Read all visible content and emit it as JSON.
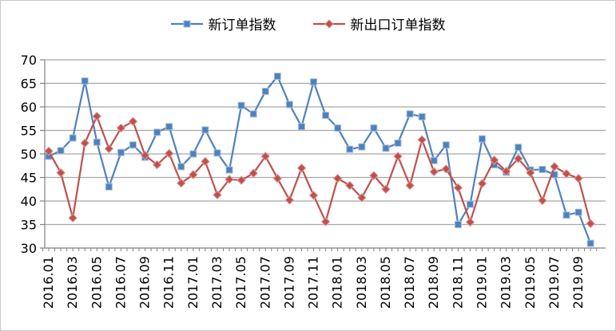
{
  "chart": {
    "title": "",
    "legend_position": "top"
  },
  "chart_data": {
    "type": "line",
    "title": "",
    "xlabel": "",
    "ylabel": "",
    "ylim": [
      30,
      70
    ],
    "y_step": 5,
    "y_ticks": [
      30,
      35,
      40,
      45,
      50,
      55,
      60,
      65,
      70
    ],
    "grid": true,
    "legend_position": "top",
    "x_label_interval": 2,
    "x": [
      "2016.01",
      "2016.02",
      "2016.03",
      "2016.04",
      "2016.05",
      "2016.06",
      "2016.07",
      "2016.08",
      "2016.09",
      "2016.10",
      "2016.11",
      "2016.12",
      "2017.01",
      "2017.02",
      "2017.03",
      "2017.04",
      "2017.05",
      "2017.06",
      "2017.07",
      "2017.08",
      "2017.09",
      "2017.10",
      "2017.11",
      "2017.12",
      "2018.01",
      "2018.02",
      "2018.03",
      "2018.04",
      "2018.05",
      "2018.06",
      "2018.07",
      "2018.08",
      "2018.09",
      "2018.10",
      "2018.11",
      "2018.12",
      "2019.01",
      "2019.02",
      "2019.03",
      "2019.04",
      "2019.05",
      "2019.06",
      "2019.07",
      "2019.08",
      "2019.09",
      "2019.10"
    ],
    "series": [
      {
        "name": "新订单指数",
        "color": "#4f81bd",
        "edge_color": "#a9c2e0",
        "marker": "square",
        "values": [
          49.5,
          50.7,
          53.4,
          65.5,
          52.5,
          43.0,
          50.3,
          51.9,
          49.3,
          54.6,
          55.8,
          47.3,
          50.0,
          55.1,
          50.2,
          46.6,
          60.3,
          58.5,
          63.3,
          66.5,
          60.5,
          55.8,
          65.3,
          58.2,
          55.5,
          51.0,
          51.5,
          55.5,
          51.2,
          52.3,
          58.5,
          57.9,
          48.6,
          51.9,
          35.0,
          39.3,
          53.2,
          47.7,
          46.1,
          51.4,
          46.6,
          46.7,
          45.6,
          37.0,
          37.6,
          31.0
        ]
      },
      {
        "name": "新出口订单指数",
        "color": "#c0504d",
        "edge_color": "#dca09e",
        "marker": "diamond",
        "values": [
          50.6,
          46.0,
          36.4,
          52.3,
          58.0,
          51.1,
          55.5,
          56.9,
          49.7,
          47.7,
          50.1,
          43.8,
          45.6,
          48.4,
          41.3,
          44.6,
          44.4,
          45.9,
          49.5,
          44.8,
          40.2,
          47.0,
          41.2,
          35.6,
          44.8,
          43.3,
          40.7,
          45.4,
          42.5,
          49.5,
          43.3,
          53.0,
          46.2,
          46.8,
          42.8,
          35.5,
          43.7,
          48.7,
          46.3,
          49.0,
          46.0,
          40.1,
          47.3,
          45.8,
          44.8,
          35.2
        ]
      }
    ],
    "colors": {
      "gridline": "#a6a6a6",
      "axis": "#808080",
      "text": "#000000"
    }
  }
}
